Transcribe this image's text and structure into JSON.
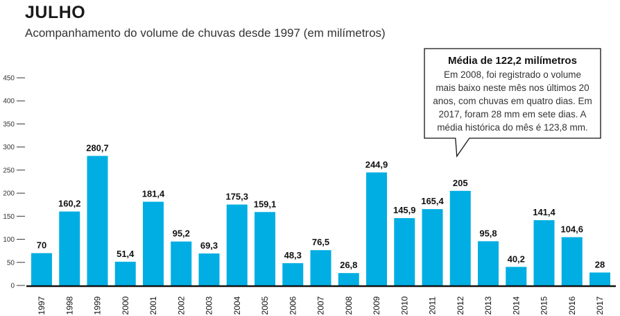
{
  "chart_data": {
    "type": "bar",
    "title": "JULHO",
    "subtitle": "Acompanhamento do volume de chuvas desde 1997 (em milímetros)",
    "xlabel": "",
    "ylabel": "",
    "ylim": [
      0,
      450
    ],
    "yticks": [
      0,
      50,
      100,
      150,
      200,
      250,
      300,
      350,
      400,
      450
    ],
    "ytick_labels": [
      "0",
      "50",
      "100",
      "150",
      "200",
      "250",
      "300",
      "350",
      "400",
      "450"
    ],
    "grid": false,
    "bar_color": "#00aee3",
    "categories": [
      "1997",
      "1998",
      "1999",
      "2000",
      "2001",
      "2002",
      "2003",
      "2004",
      "2005",
      "2006",
      "2007",
      "2008",
      "2009",
      "2010",
      "2011",
      "2012",
      "2013",
      "2014",
      "2015",
      "2016",
      "2017"
    ],
    "values": [
      70,
      160.2,
      280.7,
      51.4,
      181.4,
      95.2,
      69.3,
      175.3,
      159.1,
      48.3,
      76.5,
      26.8,
      244.9,
      145.9,
      165.4,
      205,
      95.8,
      40.2,
      141.4,
      104.6,
      28
    ],
    "value_labels": [
      "70",
      "160,2",
      "280,7",
      "51,4",
      "181,4",
      "95,2",
      "69,3",
      "175,3",
      "159,1",
      "48,3",
      "76,5",
      "26,8",
      "244,9",
      "145,9",
      "165,4",
      "205",
      "95,8",
      "40,2",
      "141,4",
      "104,6",
      "28"
    ],
    "annotation": {
      "title": "Média de 122,2 milímetros",
      "lines": [
        "Em 2008, foi registrado o volume",
        "mais baixo neste mês nos últimos 20",
        "anos, com chuvas em quatro dias. Em",
        "2017, foram 28 mm em sete dias. A",
        "média histórica do mês é 123,8 mm."
      ],
      "points_to": "2012"
    }
  }
}
